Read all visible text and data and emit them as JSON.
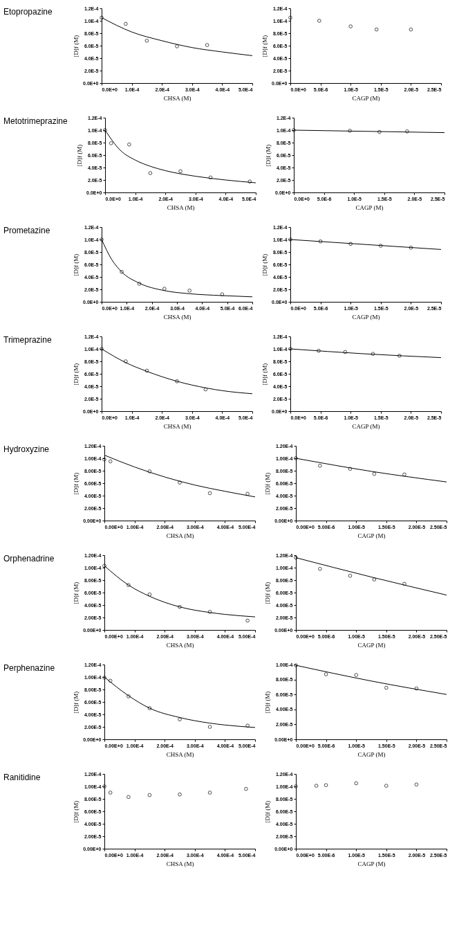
{
  "chart_data": [
    {
      "type": "other",
      "title": "Etopropazine"
    },
    {
      "type": "scatter",
      "xlabel": "CHSA (M)",
      "ylabel": "[D]f (M)",
      "xlim": [
        0,
        0.0005
      ],
      "ylim": [
        0,
        0.00012
      ],
      "xticks": [
        {
          "value": 0,
          "label": "0.0E+0"
        },
        {
          "value": 0.0001,
          "label": "1.0E-4"
        },
        {
          "value": 0.0002,
          "label": "2.0E-4"
        },
        {
          "value": 0.0003,
          "label": "3.0E-4"
        },
        {
          "value": 0.0004,
          "label": "4.0E-4"
        },
        {
          "value": 0.0005,
          "label": "5.0E-4"
        }
      ],
      "yticks": [
        {
          "value": 0,
          "label": "0.0E+0"
        },
        {
          "value": 2e-05,
          "label": "2.0E-5"
        },
        {
          "value": 4e-05,
          "label": "4.0E-5"
        },
        {
          "value": 6e-05,
          "label": "6.0E-5"
        },
        {
          "value": 8e-05,
          "label": "8.0E-5"
        },
        {
          "value": 0.0001,
          "label": "1.0E-4"
        },
        {
          "value": 0.00012,
          "label": "1.2E-4"
        }
      ],
      "series": [
        {
          "type": "scatter",
          "marker": "circle",
          "color": "#000000",
          "x": [
            0,
            8e-05,
            0.00015,
            0.00025,
            0.00035
          ],
          "values": [
            0.000105,
            9.5e-05,
            6.8e-05,
            5.9e-05,
            6.1e-05
          ]
        },
        {
          "type": "line",
          "color": "#000000",
          "x": [
            0,
            0.0001,
            0.0002,
            0.0003,
            0.0004,
            0.0005
          ],
          "values": [
            0.000105,
            8.2e-05,
            6.8e-05,
            5.7e-05,
            5e-05,
            4.4e-05
          ]
        }
      ]
    },
    {
      "type": "scatter",
      "xlabel": "CAGP (M)",
      "ylabel": "[D]f (M)",
      "xlim": [
        0,
        2.5e-05
      ],
      "ylim": [
        0,
        0.00012
      ],
      "xticks": [
        {
          "value": 0,
          "label": "0.0E+0"
        },
        {
          "value": 5e-06,
          "label": "5.0E-6"
        },
        {
          "value": 1e-05,
          "label": "1.0E-5"
        },
        {
          "value": 1.5e-05,
          "label": "1.5E-5"
        },
        {
          "value": 2e-05,
          "label": "2.0E-5"
        },
        {
          "value": 2.5e-05,
          "label": "2.5E-5"
        }
      ],
      "yticks": [
        {
          "value": 0,
          "label": "0.0E+0"
        },
        {
          "value": 2e-05,
          "label": "2.0E-5"
        },
        {
          "value": 4e-05,
          "label": "4.0E-5"
        },
        {
          "value": 6e-05,
          "label": "6.0E-5"
        },
        {
          "value": 8e-05,
          "label": "8.0E-5"
        },
        {
          "value": 0.0001,
          "label": "1.0E-4"
        },
        {
          "value": 0.00012,
          "label": "1.2E-4"
        }
      ],
      "series": [
        {
          "type": "scatter",
          "marker": "circle",
          "color": "#000000",
          "x": [
            0,
            4.8e-06,
            1e-05,
            1.43e-05,
            2e-05
          ],
          "values": [
            0.000105,
            0.0001,
            9.1e-05,
            8.6e-05,
            8.6e-05
          ]
        }
      ]
    },
    {
      "type": "other",
      "title": "Metotrimeprazine"
    },
    {
      "type": "scatter",
      "xlabel": "CHSA (M)",
      "ylabel": "[D]f (M)",
      "xlim": [
        0,
        0.0005
      ],
      "ylim": [
        0,
        0.00012
      ],
      "xticks": [
        {
          "value": 0,
          "label": "0.0E+0"
        },
        {
          "value": 0.0001,
          "label": "1.0E-4"
        },
        {
          "value": 0.0002,
          "label": "2.0E-4"
        },
        {
          "value": 0.0003,
          "label": "3.0E-4"
        },
        {
          "value": 0.0004,
          "label": "4.0E-4"
        },
        {
          "value": 0.0005,
          "label": "5.0E-4"
        }
      ],
      "yticks": [
        {
          "value": 0,
          "label": "0.0E+0"
        },
        {
          "value": 2e-05,
          "label": "2.0E-5"
        },
        {
          "value": 4e-05,
          "label": "4.0E-5"
        },
        {
          "value": 6e-05,
          "label": "6.0E-5"
        },
        {
          "value": 8e-05,
          "label": "8.0E-5"
        },
        {
          "value": 0.0001,
          "label": "1.0E-4"
        },
        {
          "value": 0.00012,
          "label": "1.2E-4"
        }
      ],
      "series": [
        {
          "type": "scatter",
          "marker": "circle",
          "color": "#000000",
          "x": [
            0,
            2e-05,
            8e-05,
            0.00015,
            0.00025,
            0.00035,
            0.00048
          ],
          "values": [
            0.0001,
            7.9e-05,
            7.7e-05,
            3.1e-05,
            3.4e-05,
            2.4e-05,
            1.75e-05
          ]
        },
        {
          "type": "line",
          "color": "#000000",
          "x": [
            0,
            5e-05,
            0.0001,
            0.00015,
            0.0002,
            0.0003,
            0.0004,
            0.0005
          ],
          "values": [
            0.0001,
            6.8e-05,
            5.2e-05,
            4.2e-05,
            3.5e-05,
            2.6e-05,
            2e-05,
            1.55e-05
          ]
        }
      ]
    },
    {
      "type": "scatter",
      "xlabel": "CAGP (M)",
      "ylabel": "[D]f (M)",
      "xlim": [
        0,
        2.5e-05
      ],
      "ylim": [
        0,
        0.00012
      ],
      "xticks": [
        {
          "value": 0,
          "label": "0.0E+0"
        },
        {
          "value": 5e-06,
          "label": "5.0E-6"
        },
        {
          "value": 1e-05,
          "label": "1.0E-5"
        },
        {
          "value": 1.5e-05,
          "label": "1.5E-5"
        },
        {
          "value": 2e-05,
          "label": "2.0E-5"
        },
        {
          "value": 2.5e-05,
          "label": "2.5E-5"
        }
      ],
      "yticks": [
        {
          "value": 0,
          "label": "0.0E+0"
        },
        {
          "value": 2e-05,
          "label": "2.0E-5"
        },
        {
          "value": 4e-05,
          "label": "4.0E-5"
        },
        {
          "value": 6e-05,
          "label": "6.0E-5"
        },
        {
          "value": 8e-05,
          "label": "8.0E-5"
        },
        {
          "value": 0.0001,
          "label": "1.0E-4"
        },
        {
          "value": 0.00012,
          "label": "1.2E-4"
        }
      ],
      "series": [
        {
          "type": "scatter",
          "marker": "circle",
          "color": "#000000",
          "x": [
            0,
            9.3e-06,
            1.42e-05,
            1.88e-05
          ],
          "values": [
            0.0001,
            9.9e-05,
            9.7e-05,
            9.8e-05
          ]
        },
        {
          "type": "line",
          "color": "#000000",
          "x": [
            0,
            2.5e-05
          ],
          "values": [
            0.0001,
            9.6e-05
          ]
        }
      ]
    },
    {
      "type": "other",
      "title": "Prometazine"
    },
    {
      "type": "scatter",
      "xlabel": "CHSA (M)",
      "ylabel": "[D]f (M)",
      "xlim": [
        0,
        0.0006
      ],
      "ylim": [
        0,
        0.00012
      ],
      "xticks": [
        {
          "value": 0,
          "label": "0.0E+0"
        },
        {
          "value": 0.0001,
          "label": "1.0E-4"
        },
        {
          "value": 0.0002,
          "label": "2.0E-4"
        },
        {
          "value": 0.0003,
          "label": "3.0E-4"
        },
        {
          "value": 0.0004,
          "label": "4.0E-4"
        },
        {
          "value": 0.0005,
          "label": "5.0E-4"
        },
        {
          "value": 0.0006,
          "label": "6.0E-4"
        }
      ],
      "yticks": [
        {
          "value": 0,
          "label": "0.0E+0"
        },
        {
          "value": 2e-05,
          "label": "2.0E-5"
        },
        {
          "value": 4e-05,
          "label": "4.0E-5"
        },
        {
          "value": 6e-05,
          "label": "6.0E-5"
        },
        {
          "value": 8e-05,
          "label": "8.0E-5"
        },
        {
          "value": 0.0001,
          "label": "1.0E-4"
        },
        {
          "value": 0.00012,
          "label": "1.2E-4"
        }
      ],
      "series": [
        {
          "type": "scatter",
          "marker": "circle",
          "color": "#000000",
          "x": [
            0,
            8e-05,
            0.00015,
            0.00025,
            0.00035,
            0.00048
          ],
          "values": [
            0.0001,
            4.8e-05,
            2.9e-05,
            2.1e-05,
            1.8e-05,
            1.2e-05
          ]
        },
        {
          "type": "line",
          "color": "#000000",
          "x": [
            0,
            4e-05,
            8e-05,
            0.00015,
            0.00025,
            0.00035,
            0.00048,
            0.0006
          ],
          "values": [
            0.0001,
            6.8e-05,
            4.8e-05,
            3e-05,
            1.8e-05,
            1.3e-05,
            1e-05,
            8e-06
          ]
        }
      ]
    },
    {
      "type": "scatter",
      "xlabel": "CAGP (M)",
      "ylabel": "[D]f (M)",
      "xlim": [
        0,
        2.5e-05
      ],
      "ylim": [
        0,
        0.00012
      ],
      "xticks": [
        {
          "value": 0,
          "label": "0.0E+0"
        },
        {
          "value": 5e-06,
          "label": "5.0E-6"
        },
        {
          "value": 1e-05,
          "label": "1.0E-5"
        },
        {
          "value": 1.5e-05,
          "label": "1.5E-5"
        },
        {
          "value": 2e-05,
          "label": "2.0E-5"
        },
        {
          "value": 2.5e-05,
          "label": "2.5E-5"
        }
      ],
      "yticks": [
        {
          "value": 0,
          "label": "0.0E+0"
        },
        {
          "value": 2e-05,
          "label": "2.0E-5"
        },
        {
          "value": 4e-05,
          "label": "4.0E-5"
        },
        {
          "value": 6e-05,
          "label": "6.0E-5"
        },
        {
          "value": 8e-05,
          "label": "8.0E-5"
        },
        {
          "value": 0.0001,
          "label": "1.0E-4"
        },
        {
          "value": 0.00012,
          "label": "1.2E-4"
        }
      ],
      "series": [
        {
          "type": "scatter",
          "marker": "circle",
          "color": "#000000",
          "x": [
            0,
            5e-06,
            1e-05,
            1.5e-05,
            2e-05
          ],
          "values": [
            0.0001,
            9.7e-05,
            9.3e-05,
            9e-05,
            8.7e-05
          ]
        },
        {
          "type": "line",
          "color": "#000000",
          "x": [
            0,
            1.25e-05,
            2.5e-05
          ],
          "values": [
            0.0001,
            9.2e-05,
            8.4e-05
          ]
        }
      ]
    },
    {
      "type": "other",
      "title": "Trimeprazine"
    },
    {
      "type": "scatter",
      "xlabel": "CHSA (M)",
      "ylabel": "[D]f (M)",
      "xlim": [
        0,
        0.0005
      ],
      "ylim": [
        0,
        0.00012
      ],
      "xticks": [
        {
          "value": 0,
          "label": "0.0E+0"
        },
        {
          "value": 0.0001,
          "label": "1.0E-4"
        },
        {
          "value": 0.0002,
          "label": "2.0E-4"
        },
        {
          "value": 0.0003,
          "label": "3.0E-4"
        },
        {
          "value": 0.0004,
          "label": "4.0E-4"
        },
        {
          "value": 0.0005,
          "label": "5.0E-4"
        }
      ],
      "yticks": [
        {
          "value": 0,
          "label": "0.0E+0"
        },
        {
          "value": 2e-05,
          "label": "2.0E-5"
        },
        {
          "value": 4e-05,
          "label": "4.0E-5"
        },
        {
          "value": 6e-05,
          "label": "6.0E-5"
        },
        {
          "value": 8e-05,
          "label": "8.0E-5"
        },
        {
          "value": 0.0001,
          "label": "1.0E-4"
        },
        {
          "value": 0.00012,
          "label": "1.2E-4"
        }
      ],
      "series": [
        {
          "type": "scatter",
          "marker": "circle",
          "color": "#000000",
          "x": [
            0,
            8e-05,
            0.00015,
            0.00025,
            0.000345
          ],
          "values": [
            0.0001,
            8e-05,
            6.5e-05,
            4.8e-05,
            3.5e-05
          ]
        },
        {
          "type": "line",
          "color": "#000000",
          "x": [
            0,
            8e-05,
            0.00015,
            0.00025,
            0.00035,
            0.0004,
            0.0005
          ],
          "values": [
            0.0001,
            7.8e-05,
            6.4e-05,
            4.8e-05,
            3.7e-05,
            3.3e-05,
            2.8e-05
          ]
        }
      ]
    },
    {
      "type": "scatter",
      "xlabel": "CAGP (M)",
      "ylabel": "[D]f (M)",
      "xlim": [
        0,
        2.5e-05
      ],
      "ylim": [
        0,
        0.00012
      ],
      "xticks": [
        {
          "value": 0,
          "label": "0.0E+0"
        },
        {
          "value": 5e-06,
          "label": "5.0E-6"
        },
        {
          "value": 1e-05,
          "label": "1.0E-5"
        },
        {
          "value": 1.5e-05,
          "label": "1.5E-5"
        },
        {
          "value": 2e-05,
          "label": "2.0E-5"
        },
        {
          "value": 2.5e-05,
          "label": "2.5E-5"
        }
      ],
      "yticks": [
        {
          "value": 0,
          "label": "0.0E+0"
        },
        {
          "value": 2e-05,
          "label": "2.0E-5"
        },
        {
          "value": 4e-05,
          "label": "4.0E-5"
        },
        {
          "value": 6e-05,
          "label": "6.0E-5"
        },
        {
          "value": 8e-05,
          "label": "8.0E-5"
        },
        {
          "value": 0.0001,
          "label": "1.0E-4"
        },
        {
          "value": 0.00012,
          "label": "1.2E-4"
        }
      ],
      "series": [
        {
          "type": "scatter",
          "marker": "circle",
          "color": "#000000",
          "x": [
            0,
            4.7e-06,
            9.1e-06,
            1.37e-05,
            1.81e-05
          ],
          "values": [
            0.0001,
            9.7e-05,
            9.5e-05,
            9.2e-05,
            8.9e-05
          ]
        },
        {
          "type": "line",
          "color": "#000000",
          "x": [
            0,
            1.25e-05,
            2.5e-05
          ],
          "values": [
            0.0001,
            9.2e-05,
            8.6e-05
          ]
        }
      ]
    },
    {
      "type": "other",
      "title": "Hydroxyzine"
    },
    {
      "type": "scatter",
      "xlabel": "CHSA (M)",
      "ylabel": "[D]f (M)",
      "xlim": [
        0,
        0.0005
      ],
      "ylim": [
        0,
        0.00012
      ],
      "xticks": [
        {
          "value": 0,
          "label": "0.00E+0"
        },
        {
          "value": 0.0001,
          "label": "1.00E-4"
        },
        {
          "value": 0.0002,
          "label": "2.00E-4"
        },
        {
          "value": 0.0003,
          "label": "3.00E-4"
        },
        {
          "value": 0.0004,
          "label": "4.00E-4"
        },
        {
          "value": 0.0005,
          "label": "5.00E-4"
        }
      ],
      "yticks": [
        {
          "value": 0,
          "label": "0.00E+0"
        },
        {
          "value": 2e-05,
          "label": "2.00E-5"
        },
        {
          "value": 4e-05,
          "label": "4.00E-5"
        },
        {
          "value": 6e-05,
          "label": "6.00E-5"
        },
        {
          "value": 8e-05,
          "label": "8.00E-5"
        },
        {
          "value": 0.0001,
          "label": "1.00E-4"
        },
        {
          "value": 0.00012,
          "label": "1.20E-4"
        }
      ],
      "series": [
        {
          "type": "scatter",
          "marker": "circle",
          "color": "#000000",
          "x": [
            0,
            2e-05,
            0.00015,
            0.00025,
            0.00035,
            0.000475
          ],
          "values": [
            9.8e-05,
            9.5e-05,
            7.9e-05,
            6.1e-05,
            4.4e-05,
            4.3e-05
          ]
        },
        {
          "type": "line",
          "color": "#000000",
          "x": [
            0,
            0.0001,
            0.0002,
            0.0003,
            0.0004,
            0.0005
          ],
          "values": [
            0.000105,
            8.6e-05,
            7e-05,
            5.7e-05,
            4.7e-05,
            3.8e-05
          ]
        }
      ]
    },
    {
      "type": "scatter",
      "xlabel": "CAGP (M)",
      "ylabel": "[D]f (M)",
      "xlim": [
        0,
        2.5e-05
      ],
      "ylim": [
        0,
        0.00012
      ],
      "xticks": [
        {
          "value": 0,
          "label": "0.00E+0"
        },
        {
          "value": 5e-06,
          "label": "5.00E-6"
        },
        {
          "value": 1e-05,
          "label": "1.00E-5"
        },
        {
          "value": 1.5e-05,
          "label": "1.50E-5"
        },
        {
          "value": 2e-05,
          "label": "2.00E-5"
        },
        {
          "value": 2.5e-05,
          "label": "2.50E-5"
        }
      ],
      "yticks": [
        {
          "value": 0,
          "label": "0.00E+0"
        },
        {
          "value": 2e-05,
          "label": "2.00E-5"
        },
        {
          "value": 4e-05,
          "label": "4.00E-5"
        },
        {
          "value": 6e-05,
          "label": "6.00E-5"
        },
        {
          "value": 8e-05,
          "label": "8.00E-5"
        },
        {
          "value": 0.0001,
          "label": "1.00E-4"
        },
        {
          "value": 0.00012,
          "label": "1.20E-4"
        }
      ],
      "series": [
        {
          "type": "scatter",
          "marker": "circle",
          "color": "#000000",
          "x": [
            0,
            4e-06,
            9e-06,
            1.3e-05,
            1.8e-05
          ],
          "values": [
            0.0001,
            8.8e-05,
            8.3e-05,
            7.5e-05,
            7.4e-05
          ]
        },
        {
          "type": "line",
          "color": "#000000",
          "x": [
            0,
            1.25e-05,
            2.5e-05
          ],
          "values": [
            0.0001,
            7.9e-05,
            6.2e-05
          ]
        }
      ]
    },
    {
      "type": "other",
      "title": "Orphenadrine"
    },
    {
      "type": "scatter",
      "xlabel": "CHSA (M)",
      "ylabel": "[D]f (M)",
      "xlim": [
        0,
        0.0005
      ],
      "ylim": [
        0,
        0.00012
      ],
      "xticks": [
        {
          "value": 0,
          "label": "0.00E+0"
        },
        {
          "value": 0.0001,
          "label": "1.00E-4"
        },
        {
          "value": 0.0002,
          "label": "2.00E-4"
        },
        {
          "value": 0.0003,
          "label": "3.00E-4"
        },
        {
          "value": 0.0004,
          "label": "4.00E-4"
        },
        {
          "value": 0.0005,
          "label": "5.00E-4"
        }
      ],
      "yticks": [
        {
          "value": 0,
          "label": "0.00E+0"
        },
        {
          "value": 2e-05,
          "label": "2.00E-5"
        },
        {
          "value": 4e-05,
          "label": "4.00E-5"
        },
        {
          "value": 6e-05,
          "label": "6.00E-5"
        },
        {
          "value": 8e-05,
          "label": "8.00E-5"
        },
        {
          "value": 0.0001,
          "label": "1.00E-4"
        },
        {
          "value": 0.00012,
          "label": "1.20E-4"
        }
      ],
      "series": [
        {
          "type": "scatter",
          "marker": "circle",
          "color": "#000000",
          "x": [
            0,
            8e-05,
            0.00015,
            0.00025,
            0.00035,
            0.000475
          ],
          "values": [
            0.000103,
            7.2e-05,
            5.7e-05,
            3.7e-05,
            2.9e-05,
            1.5e-05
          ]
        },
        {
          "type": "line",
          "color": "#000000",
          "x": [
            0,
            8e-05,
            0.00015,
            0.00025,
            0.00035,
            0.0004,
            0.0005
          ],
          "values": [
            0.000103,
            7.2e-05,
            5.4e-05,
            3.7e-05,
            2.8e-05,
            2.5e-05,
            2.1e-05
          ]
        }
      ]
    },
    {
      "type": "scatter",
      "xlabel": "CAGP (M)",
      "ylabel": "[D]f (M)",
      "xlim": [
        0,
        2.5e-05
      ],
      "ylim": [
        0,
        0.00012
      ],
      "xticks": [
        {
          "value": 0,
          "label": "0.00E+0"
        },
        {
          "value": 5e-06,
          "label": "5.00E-6"
        },
        {
          "value": 1e-05,
          "label": "1.00E-5"
        },
        {
          "value": 1.5e-05,
          "label": "1.50E-5"
        },
        {
          "value": 2e-05,
          "label": "2.00E-5"
        },
        {
          "value": 2.5e-05,
          "label": "2.50E-5"
        }
      ],
      "yticks": [
        {
          "value": 0,
          "label": "0.00E+0"
        },
        {
          "value": 2e-05,
          "label": "2.00E-5"
        },
        {
          "value": 4e-05,
          "label": "4.00E-5"
        },
        {
          "value": 6e-05,
          "label": "6.00E-5"
        },
        {
          "value": 8e-05,
          "label": "8.00E-5"
        },
        {
          "value": 0.0001,
          "label": "1.00E-4"
        },
        {
          "value": 0.00012,
          "label": "1.20E-4"
        }
      ],
      "series": [
        {
          "type": "scatter",
          "marker": "circle",
          "color": "#000000",
          "x": [
            0,
            4e-06,
            9e-06,
            1.3e-05,
            1.8e-05
          ],
          "values": [
            0.000116,
            9.8e-05,
            8.7e-05,
            8.1e-05,
            7.4e-05
          ]
        },
        {
          "type": "line",
          "color": "#000000",
          "x": [
            0,
            1.25e-05,
            2.5e-05
          ],
          "values": [
            0.000116,
            8.5e-05,
            5.6e-05
          ]
        }
      ]
    },
    {
      "type": "other",
      "title": "Perphenazine"
    },
    {
      "type": "scatter",
      "xlabel": "CHSA (M)",
      "ylabel": "[D]f (M)",
      "xlim": [
        0,
        0.0005
      ],
      "ylim": [
        0,
        0.00012
      ],
      "xticks": [
        {
          "value": 0,
          "label": "0.00E+0"
        },
        {
          "value": 0.0001,
          "label": "1.00E-4"
        },
        {
          "value": 0.0002,
          "label": "2.00E-4"
        },
        {
          "value": 0.0003,
          "label": "3.00E-4"
        },
        {
          "value": 0.0004,
          "label": "4.00E-4"
        },
        {
          "value": 0.0005,
          "label": "5.00E-4"
        }
      ],
      "yticks": [
        {
          "value": 0,
          "label": "0.00E+0"
        },
        {
          "value": 2e-05,
          "label": "2.00E-5"
        },
        {
          "value": 4e-05,
          "label": "4.00E-5"
        },
        {
          "value": 6e-05,
          "label": "6.00E-5"
        },
        {
          "value": 8e-05,
          "label": "8.00E-5"
        },
        {
          "value": 0.0001,
          "label": "1.00E-4"
        },
        {
          "value": 0.00012,
          "label": "1.20E-4"
        }
      ],
      "series": [
        {
          "type": "scatter",
          "marker": "circle",
          "color": "#000000",
          "x": [
            0,
            2e-05,
            8e-05,
            0.00015,
            0.00025,
            0.00035,
            0.000475
          ],
          "values": [
            9.9e-05,
            9.4e-05,
            6.9e-05,
            5e-05,
            3.2e-05,
            2e-05,
            2.2e-05
          ]
        },
        {
          "type": "line",
          "color": "#000000",
          "x": [
            0,
            8e-05,
            0.00015,
            0.00025,
            0.00035,
            0.0004,
            0.0005
          ],
          "values": [
            0.0001,
            7e-05,
            5e-05,
            3.5e-05,
            2.6e-05,
            2.3e-05,
            1.9e-05
          ]
        }
      ]
    },
    {
      "type": "scatter",
      "xlabel": "CAGP (M)",
      "ylabel": "[D]f (M)",
      "xlim": [
        0,
        2.5e-05
      ],
      "ylim": [
        0,
        0.0001
      ],
      "xticks": [
        {
          "value": 0,
          "label": "0.00E+0"
        },
        {
          "value": 5e-06,
          "label": "5.00E-6"
        },
        {
          "value": 1e-05,
          "label": "1.00E-5"
        },
        {
          "value": 1.5e-05,
          "label": "1.50E-5"
        },
        {
          "value": 2e-05,
          "label": "2.00E-5"
        },
        {
          "value": 2.5e-05,
          "label": "2.50E-5"
        }
      ],
      "yticks": [
        {
          "value": 0,
          "label": "0.00E+0"
        },
        {
          "value": 2e-05,
          "label": "2.00E-5"
        },
        {
          "value": 4e-05,
          "label": "4.00E-5"
        },
        {
          "value": 6e-05,
          "label": "6.00E-5"
        },
        {
          "value": 8e-05,
          "label": "8.00E-5"
        },
        {
          "value": 0.0001,
          "label": "1.00E-4"
        }
      ],
      "series": [
        {
          "type": "scatter",
          "marker": "circle",
          "color": "#000000",
          "x": [
            0,
            5e-06,
            1e-05,
            1.5e-05,
            2e-05
          ],
          "values": [
            9.9e-05,
            8.7e-05,
            8.6e-05,
            6.9e-05,
            6.8e-05
          ]
        },
        {
          "type": "line",
          "color": "#000000",
          "x": [
            0,
            1.25e-05,
            2.5e-05
          ],
          "values": [
            9.9e-05,
            7.8e-05,
            6e-05
          ]
        }
      ]
    },
    {
      "type": "other",
      "title": "Ranitidine"
    },
    {
      "type": "scatter",
      "xlabel": "CHSA (M)",
      "ylabel": "[D]f (M)",
      "xlim": [
        0,
        0.0005
      ],
      "ylim": [
        0,
        0.00012
      ],
      "xticks": [
        {
          "value": 0,
          "label": "0.00E+0"
        },
        {
          "value": 0.0001,
          "label": "1.00E-4"
        },
        {
          "value": 0.0002,
          "label": "2.00E-4"
        },
        {
          "value": 0.0003,
          "label": "3.00E-4"
        },
        {
          "value": 0.0004,
          "label": "4.00E-4"
        },
        {
          "value": 0.0005,
          "label": "5.00E-4"
        }
      ],
      "yticks": [
        {
          "value": 0,
          "label": "0.00E+0"
        },
        {
          "value": 2e-05,
          "label": "2.00E-5"
        },
        {
          "value": 4e-05,
          "label": "4.00E-5"
        },
        {
          "value": 6e-05,
          "label": "6.00E-5"
        },
        {
          "value": 8e-05,
          "label": "8.00E-5"
        },
        {
          "value": 0.0001,
          "label": "1.00E-4"
        },
        {
          "value": 0.00012,
          "label": "1.20E-4"
        }
      ],
      "series": [
        {
          "type": "scatter",
          "marker": "circle",
          "color": "#000000",
          "x": [
            0,
            2e-05,
            8e-05,
            0.00015,
            0.00025,
            0.00035,
            0.00047
          ],
          "values": [
            0.0001,
            9e-05,
            8.3e-05,
            8.6e-05,
            8.7e-05,
            9e-05,
            9.6e-05
          ]
        }
      ]
    },
    {
      "type": "scatter",
      "xlabel": "CAGP (M)",
      "ylabel": "[D]f (M)",
      "xlim": [
        0,
        2.5e-05
      ],
      "ylim": [
        0,
        0.00012
      ],
      "xticks": [
        {
          "value": 0,
          "label": "0.00E+0"
        },
        {
          "value": 5e-06,
          "label": "5.00E-6"
        },
        {
          "value": 1e-05,
          "label": "1.00E-5"
        },
        {
          "value": 1.5e-05,
          "label": "1.50E-5"
        },
        {
          "value": 2e-05,
          "label": "2.00E-5"
        },
        {
          "value": 2.5e-05,
          "label": "2.50E-5"
        }
      ],
      "yticks": [
        {
          "value": 0,
          "label": "0.00E+0"
        },
        {
          "value": 2e-05,
          "label": "2.00E-5"
        },
        {
          "value": 4e-05,
          "label": "4.00E-5"
        },
        {
          "value": 6e-05,
          "label": "6.00E-5"
        },
        {
          "value": 8e-05,
          "label": "8.00E-5"
        },
        {
          "value": 0.0001,
          "label": "1.00E-4"
        },
        {
          "value": 0.00012,
          "label": "1.20E-4"
        }
      ],
      "series": [
        {
          "type": "scatter",
          "marker": "circle",
          "color": "#000000",
          "x": [
            0,
            3.4e-06,
            5e-06,
            1e-05,
            1.5e-05,
            2e-05
          ],
          "values": [
            0.0001,
            0.000101,
            0.000102,
            0.000105,
            0.000101,
            0.000103
          ]
        }
      ]
    }
  ]
}
